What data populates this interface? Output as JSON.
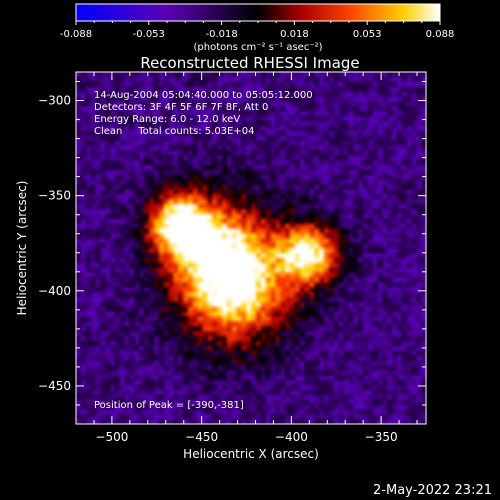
{
  "chart_data": {
    "type": "heatmap",
    "title": "Reconstructed RHESSI Image",
    "xlabel": "Heliocentric X (arcsec)",
    "ylabel": "Heliocentric Y (arcsec)",
    "xlim": [
      -520,
      -325
    ],
    "ylim": [
      -470,
      -285
    ],
    "x_ticks": [
      -500,
      -450,
      -400,
      -350
    ],
    "y_ticks": [
      -450,
      -400,
      -350,
      -300
    ],
    "colorbar": {
      "range": [
        -0.088,
        0.088
      ],
      "ticks": [
        "-0.088",
        "-0.053",
        "-0.018",
        "0.018",
        "0.053",
        "0.088"
      ],
      "unit_label": "(photons cm⁻² s⁻¹ asec⁻²)",
      "colormap": [
        "#0000ff",
        "#5a00b4",
        "#000000",
        "#aa0000",
        "#ff4000",
        "#ffd000",
        "#ffffff"
      ]
    },
    "annotations": [
      "14-Aug-2004 05:04:40.000 to 05:05:12.000",
      "Detectors: 3F 4F 5F 6F 7F 8F, Att 0",
      "Energy Range: 6.0 - 12.0 keV",
      "Clean     Total counts: 5.03E+04"
    ],
    "peak_label": "Position of Peak = [-390,-381]",
    "sources": [
      {
        "x": -463,
        "y": -365,
        "peak": 0.088
      },
      {
        "x": -390,
        "y": -381,
        "peak": 0.088
      },
      {
        "x": -430,
        "y": -400,
        "peak": 0.07
      },
      {
        "x": -440,
        "y": -380,
        "peak": 0.065
      }
    ],
    "background": -0.03
  },
  "timestamp": "2-May-2022 23:21"
}
